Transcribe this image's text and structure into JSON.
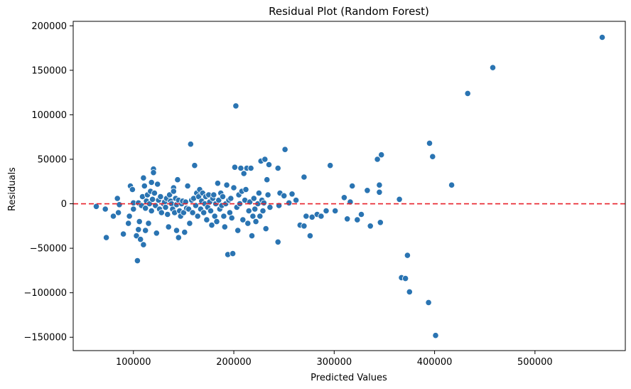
{
  "chart_data": {
    "type": "scatter",
    "title": "Residual Plot (Random Forest)",
    "xlabel": "Predicted Values",
    "ylabel": "Residuals",
    "xlim": [
      40000,
      590000
    ],
    "ylim": [
      -165000,
      205000
    ],
    "xticks": [
      100000,
      200000,
      300000,
      400000,
      500000
    ],
    "yticks": [
      -150000,
      -100000,
      -50000,
      0,
      50000,
      100000,
      150000,
      200000
    ],
    "xtick_labels": [
      "100000",
      "200000",
      "300000",
      "400000",
      "500000"
    ],
    "ytick_labels": [
      "−150000",
      "−100000",
      "−50000",
      "0",
      "50000",
      "100000",
      "150000",
      "200000"
    ],
    "grid": false,
    "reference_line": {
      "y": 0,
      "color": "#e8202a",
      "style": "dashed"
    },
    "point_color": "#2a74b2",
    "points": [
      [
        63000,
        -3000
      ],
      [
        72000,
        -6000
      ],
      [
        73000,
        -38000
      ],
      [
        80000,
        -14000
      ],
      [
        84000,
        6000
      ],
      [
        85000,
        -10000
      ],
      [
        86000,
        -1000
      ],
      [
        90000,
        -34000
      ],
      [
        95000,
        -22000
      ],
      [
        96000,
        -14000
      ],
      [
        97000,
        20000
      ],
      [
        99000,
        16000
      ],
      [
        100000,
        1000
      ],
      [
        100000,
        -6000
      ],
      [
        103000,
        -36000
      ],
      [
        104000,
        -64000
      ],
      [
        105000,
        -29000
      ],
      [
        105000,
        1000
      ],
      [
        106000,
        -20000
      ],
      [
        107000,
        -40000
      ],
      [
        108000,
        -2000
      ],
      [
        109000,
        8000
      ],
      [
        110000,
        -46000
      ],
      [
        110000,
        29000
      ],
      [
        111000,
        20000
      ],
      [
        112000,
        -30000
      ],
      [
        112000,
        -5000
      ],
      [
        113000,
        3000
      ],
      [
        114000,
        10000
      ],
      [
        115000,
        -22000
      ],
      [
        116000,
        0
      ],
      [
        117000,
        14000
      ],
      [
        118000,
        24000
      ],
      [
        118000,
        -8000
      ],
      [
        119000,
        5000
      ],
      [
        120000,
        39000
      ],
      [
        120000,
        35000
      ],
      [
        121000,
        12000
      ],
      [
        122000,
        -2000
      ],
      [
        123000,
        -33000
      ],
      [
        124000,
        22000
      ],
      [
        125000,
        4000
      ],
      [
        126000,
        -6000
      ],
      [
        127000,
        8000
      ],
      [
        128000,
        -10000
      ],
      [
        130000,
        0
      ],
      [
        131000,
        2000
      ],
      [
        132000,
        -4000
      ],
      [
        133000,
        6000
      ],
      [
        134000,
        -12000
      ],
      [
        135000,
        -26000
      ],
      [
        136000,
        10000
      ],
      [
        137000,
        3000
      ],
      [
        138000,
        0
      ],
      [
        139000,
        -6000
      ],
      [
        140000,
        18000
      ],
      [
        140000,
        14000
      ],
      [
        141000,
        -10000
      ],
      [
        142000,
        6000
      ],
      [
        143000,
        -1000
      ],
      [
        143000,
        -30000
      ],
      [
        144000,
        27000
      ],
      [
        145000,
        -38000
      ],
      [
        145000,
        4000
      ],
      [
        146000,
        -8000
      ],
      [
        147000,
        -14000
      ],
      [
        148000,
        0
      ],
      [
        149000,
        3000
      ],
      [
        150000,
        -10000
      ],
      [
        151000,
        -32000
      ],
      [
        152000,
        2000
      ],
      [
        153000,
        -5000
      ],
      [
        154000,
        20000
      ],
      [
        155000,
        -6000
      ],
      [
        156000,
        -22000
      ],
      [
        157000,
        67000
      ],
      [
        158000,
        4000
      ],
      [
        159000,
        -10000
      ],
      [
        160000,
        6000
      ],
      [
        161000,
        43000
      ],
      [
        162000,
        -2000
      ],
      [
        163000,
        12000
      ],
      [
        164000,
        -14000
      ],
      [
        165000,
        8000
      ],
      [
        166000,
        16000
      ],
      [
        167000,
        -6000
      ],
      [
        168000,
        3000
      ],
      [
        169000,
        12000
      ],
      [
        170000,
        -10000
      ],
      [
        171000,
        0
      ],
      [
        172000,
        8000
      ],
      [
        173000,
        -18000
      ],
      [
        174000,
        -4000
      ],
      [
        175000,
        10000
      ],
      [
        176000,
        2000
      ],
      [
        177000,
        -8000
      ],
      [
        178000,
        -24000
      ],
      [
        179000,
        6000
      ],
      [
        180000,
        10000
      ],
      [
        181000,
        -14000
      ],
      [
        182000,
        0
      ],
      [
        183000,
        -20000
      ],
      [
        184000,
        23000
      ],
      [
        185000,
        4000
      ],
      [
        186000,
        -6000
      ],
      [
        187000,
        12000
      ],
      [
        188000,
        -2000
      ],
      [
        189000,
        8000
      ],
      [
        190000,
        -14000
      ],
      [
        191000,
        -26000
      ],
      [
        192000,
        0
      ],
      [
        193000,
        21000
      ],
      [
        194000,
        -57000
      ],
      [
        195000,
        4000
      ],
      [
        196000,
        -10000
      ],
      [
        197000,
        6000
      ],
      [
        198000,
        -16000
      ],
      [
        199000,
        -56000
      ],
      [
        200000,
        18000
      ],
      [
        201000,
        41000
      ],
      [
        202000,
        110000
      ],
      [
        203000,
        -4000
      ],
      [
        204000,
        -30000
      ],
      [
        205000,
        10000
      ],
      [
        206000,
        0
      ],
      [
        207000,
        40000
      ],
      [
        208000,
        14000
      ],
      [
        209000,
        -18000
      ],
      [
        210000,
        34000
      ],
      [
        211000,
        4000
      ],
      [
        212000,
        16000
      ],
      [
        213000,
        40000
      ],
      [
        214000,
        -22000
      ],
      [
        215000,
        -8000
      ],
      [
        216000,
        2000
      ],
      [
        217000,
        40000
      ],
      [
        218000,
        -36000
      ],
      [
        219000,
        -14000
      ],
      [
        220000,
        6000
      ],
      [
        221000,
        -6000
      ],
      [
        222000,
        -20000
      ],
      [
        224000,
        0
      ],
      [
        225000,
        12000
      ],
      [
        226000,
        -14000
      ],
      [
        227000,
        48000
      ],
      [
        228000,
        4000
      ],
      [
        229000,
        -8000
      ],
      [
        230000,
        1000
      ],
      [
        231000,
        50000
      ],
      [
        232000,
        -28000
      ],
      [
        233000,
        27000
      ],
      [
        234000,
        10000
      ],
      [
        235000,
        44000
      ],
      [
        236000,
        -4000
      ],
      [
        244000,
        -43000
      ],
      [
        244000,
        40000
      ],
      [
        245000,
        -2000
      ],
      [
        246000,
        12000
      ],
      [
        250000,
        9000
      ],
      [
        251000,
        61000
      ],
      [
        255000,
        1000
      ],
      [
        258000,
        11000
      ],
      [
        262000,
        4000
      ],
      [
        266000,
        -24000
      ],
      [
        270000,
        -25000
      ],
      [
        270000,
        30000
      ],
      [
        272000,
        -14000
      ],
      [
        276000,
        -36000
      ],
      [
        278000,
        -15000
      ],
      [
        283000,
        -12000
      ],
      [
        287000,
        -14000
      ],
      [
        292000,
        -8000
      ],
      [
        296000,
        43000
      ],
      [
        301000,
        -8000
      ],
      [
        310000,
        7000
      ],
      [
        313000,
        -17000
      ],
      [
        316000,
        2000
      ],
      [
        318000,
        20000
      ],
      [
        323000,
        -18000
      ],
      [
        327000,
        -12000
      ],
      [
        333000,
        15000
      ],
      [
        336000,
        -25000
      ],
      [
        343000,
        50000
      ],
      [
        345000,
        13000
      ],
      [
        345000,
        21000
      ],
      [
        346000,
        -21000
      ],
      [
        347000,
        55000
      ],
      [
        365000,
        5000
      ],
      [
        367000,
        -83000
      ],
      [
        371000,
        -84000
      ],
      [
        373000,
        -58000
      ],
      [
        375000,
        -99000
      ],
      [
        394000,
        -111000
      ],
      [
        395000,
        68000
      ],
      [
        398000,
        53000
      ],
      [
        401000,
        -148000
      ],
      [
        417000,
        21000
      ],
      [
        433000,
        124000
      ],
      [
        458000,
        153000
      ],
      [
        567000,
        187000
      ]
    ]
  }
}
